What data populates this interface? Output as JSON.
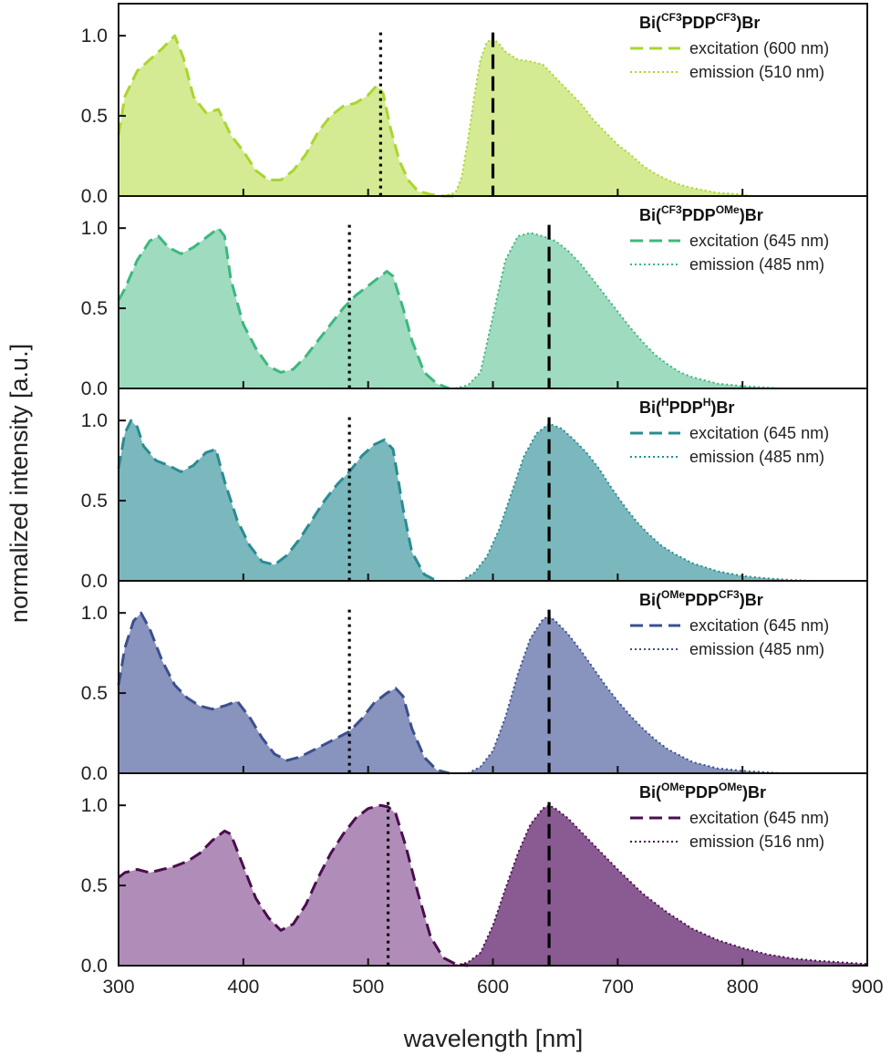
{
  "chart_data": {
    "type": "area",
    "layout": "stacked-panels",
    "xlabel": "wavelength [nm]",
    "ylabel": "normalized intensity [a.u.]",
    "xlim": [
      300,
      900
    ],
    "xticks": [
      "300",
      "400",
      "500",
      "600",
      "700",
      "800",
      "900"
    ],
    "ylim": [
      0,
      1.2
    ],
    "yticks": [
      "0.0",
      "0.5",
      "1.0"
    ],
    "panels": [
      {
        "title_parts": [
          {
            "t": "Bi("
          },
          {
            "t": "CF3",
            "sup": true
          },
          {
            "t": "PDP"
          },
          {
            "t": "CF3",
            "sup": true
          },
          {
            "t": ")Br"
          }
        ],
        "color": "#a9d62e",
        "fill": "#d4eb93",
        "excitation_label": "excitation (600 nm)",
        "emission_label": "emission (510 nm)",
        "excitation_marker": 600,
        "emission_marker": 510,
        "excitation": {
          "x": [
            300,
            305,
            315,
            325,
            335,
            345,
            352,
            360,
            370,
            380,
            390,
            400,
            410,
            420,
            430,
            440,
            450,
            460,
            470,
            480,
            490,
            500,
            507,
            512,
            518,
            525,
            532,
            540,
            550,
            560,
            570
          ],
          "y": [
            0.38,
            0.62,
            0.78,
            0.85,
            0.92,
            1.0,
            0.86,
            0.62,
            0.52,
            0.54,
            0.38,
            0.28,
            0.16,
            0.1,
            0.1,
            0.16,
            0.26,
            0.4,
            0.5,
            0.56,
            0.58,
            0.63,
            0.69,
            0.64,
            0.42,
            0.22,
            0.1,
            0.03,
            0.01,
            0.0,
            0.0
          ]
        },
        "emission": {
          "x": [
            560,
            570,
            575,
            580,
            585,
            590,
            595,
            600,
            605,
            610,
            620,
            630,
            640,
            650,
            660,
            670,
            680,
            690,
            700,
            710,
            720,
            730,
            740,
            750,
            760,
            780,
            800,
            805
          ],
          "y": [
            0.0,
            0.02,
            0.12,
            0.35,
            0.62,
            0.85,
            0.96,
            0.98,
            0.95,
            0.9,
            0.85,
            0.84,
            0.82,
            0.74,
            0.66,
            0.58,
            0.48,
            0.4,
            0.32,
            0.26,
            0.19,
            0.14,
            0.1,
            0.07,
            0.05,
            0.02,
            0.01,
            0.0
          ]
        }
      },
      {
        "title_parts": [
          {
            "t": "Bi("
          },
          {
            "t": "CF3",
            "sup": true
          },
          {
            "t": "PDP"
          },
          {
            "t": "OMe",
            "sup": true
          },
          {
            "t": ")Br"
          }
        ],
        "color": "#3cb87e",
        "fill": "#9fdbbf",
        "excitation_label": "excitation (645 nm)",
        "emission_label": "emission (485 nm)",
        "excitation_marker": 645,
        "emission_marker": 485,
        "excitation": {
          "x": [
            300,
            305,
            315,
            325,
            332,
            340,
            350,
            360,
            370,
            380,
            385,
            390,
            400,
            410,
            420,
            430,
            440,
            450,
            460,
            470,
            480,
            490,
            500,
            510,
            515,
            520,
            528,
            535,
            545,
            555,
            565
          ],
          "y": [
            0.55,
            0.62,
            0.8,
            0.92,
            0.95,
            0.88,
            0.84,
            0.88,
            0.94,
            1.0,
            0.95,
            0.68,
            0.4,
            0.25,
            0.14,
            0.1,
            0.12,
            0.2,
            0.3,
            0.4,
            0.5,
            0.58,
            0.64,
            0.7,
            0.73,
            0.7,
            0.5,
            0.3,
            0.1,
            0.03,
            0.0
          ]
        },
        "emission": {
          "x": [
            570,
            580,
            590,
            600,
            610,
            620,
            630,
            640,
            650,
            660,
            670,
            680,
            690,
            700,
            710,
            720,
            730,
            740,
            750,
            760,
            780,
            800,
            820,
            830
          ],
          "y": [
            0.0,
            0.02,
            0.1,
            0.45,
            0.8,
            0.95,
            0.97,
            0.95,
            0.92,
            0.86,
            0.78,
            0.68,
            0.58,
            0.48,
            0.38,
            0.29,
            0.21,
            0.15,
            0.1,
            0.07,
            0.03,
            0.015,
            0.005,
            0.0
          ]
        }
      },
      {
        "title_parts": [
          {
            "t": "Bi("
          },
          {
            "t": "H",
            "sup": true
          },
          {
            "t": "PDP"
          },
          {
            "t": "H",
            "sup": true
          },
          {
            "t": ")Br"
          }
        ],
        "color": "#2a8c92",
        "fill": "#7ab8bd",
        "excitation_label": "excitation (645 nm)",
        "emission_label": "emission (485 nm)",
        "excitation_marker": 645,
        "emission_marker": 485,
        "excitation": {
          "x": [
            300,
            305,
            310,
            315,
            320,
            330,
            340,
            350,
            360,
            370,
            378,
            385,
            395,
            405,
            415,
            425,
            435,
            445,
            455,
            465,
            475,
            485,
            495,
            505,
            513,
            520,
            528,
            535,
            545,
            555
          ],
          "y": [
            0.7,
            0.92,
            1.0,
            0.96,
            0.84,
            0.75,
            0.72,
            0.68,
            0.72,
            0.8,
            0.82,
            0.62,
            0.38,
            0.22,
            0.12,
            0.1,
            0.16,
            0.26,
            0.38,
            0.5,
            0.6,
            0.68,
            0.78,
            0.85,
            0.88,
            0.82,
            0.45,
            0.18,
            0.04,
            0.0
          ]
        },
        "emission": {
          "x": [
            575,
            585,
            595,
            605,
            615,
            625,
            635,
            645,
            655,
            665,
            675,
            685,
            695,
            705,
            715,
            725,
            735,
            745,
            760,
            780,
            800,
            820,
            840,
            855
          ],
          "y": [
            0.0,
            0.05,
            0.15,
            0.32,
            0.55,
            0.78,
            0.92,
            0.98,
            0.95,
            0.88,
            0.8,
            0.7,
            0.58,
            0.47,
            0.37,
            0.29,
            0.22,
            0.17,
            0.11,
            0.06,
            0.03,
            0.015,
            0.005,
            0.0
          ]
        }
      },
      {
        "title_parts": [
          {
            "t": "Bi("
          },
          {
            "t": "OMe",
            "sup": true
          },
          {
            "t": "PDP"
          },
          {
            "t": "CF3",
            "sup": true
          },
          {
            "t": ")Br"
          }
        ],
        "color": "#3b4f8f",
        "fill": "#8894bd",
        "excitation_label": "excitation (645 nm)",
        "emission_label": "emission (485 nm)",
        "excitation_marker": 645,
        "emission_marker": 485,
        "excitation": {
          "x": [
            300,
            305,
            312,
            318,
            325,
            335,
            345,
            355,
            365,
            375,
            385,
            395,
            405,
            415,
            425,
            435,
            445,
            455,
            465,
            475,
            485,
            495,
            505,
            515,
            522,
            528,
            535,
            545,
            555,
            565
          ],
          "y": [
            0.55,
            0.78,
            0.95,
            1.0,
            0.9,
            0.7,
            0.55,
            0.47,
            0.42,
            0.4,
            0.42,
            0.45,
            0.35,
            0.22,
            0.12,
            0.08,
            0.1,
            0.14,
            0.18,
            0.22,
            0.26,
            0.34,
            0.44,
            0.5,
            0.53,
            0.48,
            0.28,
            0.1,
            0.02,
            0.0
          ]
        },
        "emission": {
          "x": [
            580,
            590,
            600,
            610,
            620,
            630,
            640,
            645,
            650,
            660,
            670,
            680,
            690,
            700,
            710,
            720,
            730,
            740,
            750,
            760,
            780,
            800,
            820,
            830
          ],
          "y": [
            0.0,
            0.04,
            0.14,
            0.35,
            0.62,
            0.84,
            0.96,
            0.98,
            0.95,
            0.87,
            0.77,
            0.66,
            0.55,
            0.45,
            0.36,
            0.28,
            0.21,
            0.15,
            0.11,
            0.07,
            0.03,
            0.015,
            0.005,
            0.0
          ]
        }
      },
      {
        "title_parts": [
          {
            "t": "Bi("
          },
          {
            "t": "OMe",
            "sup": true
          },
          {
            "t": "PDP"
          },
          {
            "t": "OMe",
            "sup": true
          },
          {
            "t": ")Br"
          }
        ],
        "color": "#4a0e4e",
        "fill_excitation": "#b08db8",
        "fill": "#8a5a92",
        "excitation_label": "excitation (645 nm)",
        "emission_label": "emission (516 nm)",
        "excitation_marker": 645,
        "emission_marker": 516,
        "excitation": {
          "x": [
            300,
            305,
            315,
            325,
            335,
            345,
            355,
            365,
            375,
            385,
            390,
            400,
            410,
            420,
            430,
            440,
            450,
            460,
            470,
            480,
            490,
            500,
            510,
            516,
            522,
            530,
            540,
            550,
            560,
            570,
            580
          ],
          "y": [
            0.55,
            0.58,
            0.6,
            0.58,
            0.6,
            0.62,
            0.65,
            0.7,
            0.78,
            0.84,
            0.82,
            0.62,
            0.42,
            0.3,
            0.22,
            0.26,
            0.38,
            0.55,
            0.7,
            0.82,
            0.92,
            0.98,
            1.0,
            0.99,
            0.95,
            0.75,
            0.45,
            0.18,
            0.05,
            0.01,
            0.0
          ]
        },
        "emission": {
          "x": [
            570,
            580,
            590,
            600,
            610,
            620,
            630,
            640,
            645,
            650,
            660,
            670,
            680,
            690,
            700,
            720,
            740,
            760,
            780,
            800,
            820,
            840,
            860,
            880,
            900
          ],
          "y": [
            0.0,
            0.02,
            0.08,
            0.25,
            0.48,
            0.7,
            0.88,
            0.98,
            1.0,
            0.98,
            0.92,
            0.84,
            0.76,
            0.68,
            0.6,
            0.45,
            0.33,
            0.23,
            0.16,
            0.11,
            0.07,
            0.045,
            0.03,
            0.02,
            0.01
          ]
        }
      }
    ]
  }
}
